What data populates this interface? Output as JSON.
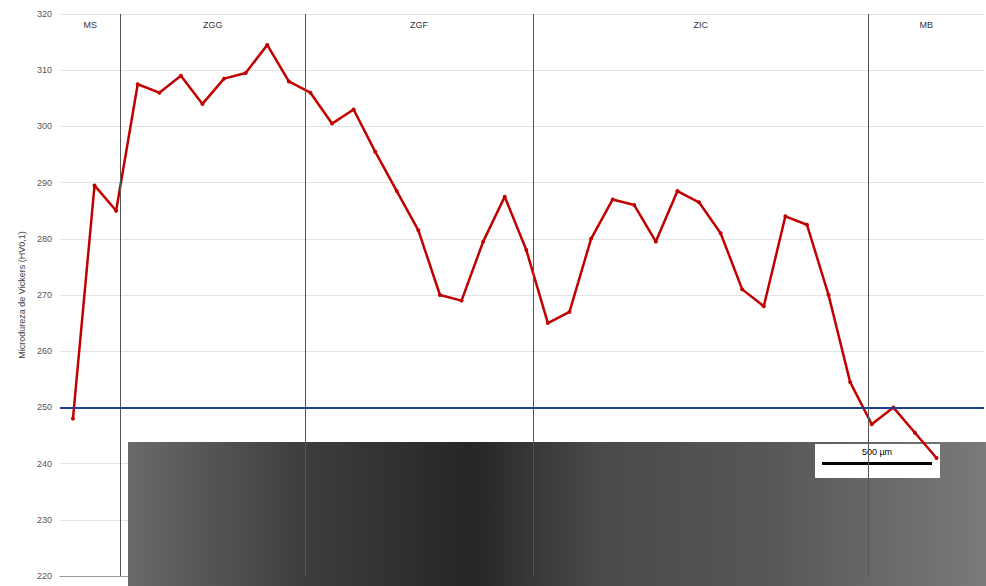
{
  "chart_data": {
    "type": "line",
    "y_label": "Microdureza de Vickers (HV0,1)",
    "x": [
      0,
      1,
      2,
      3,
      4,
      5,
      6,
      7,
      8,
      9,
      10,
      11,
      12,
      13,
      14,
      15,
      16,
      17,
      18,
      19,
      20,
      21,
      22,
      23,
      24,
      25,
      26,
      27,
      28,
      29,
      30,
      31,
      32,
      33,
      34,
      35,
      36,
      37,
      38,
      39,
      40
    ],
    "values": [
      248,
      289.5,
      285,
      307.5,
      306,
      309,
      304,
      308.5,
      309.5,
      314.5,
      308,
      306,
      300.5,
      303,
      295.5,
      288.5,
      281.5,
      270,
      269,
      279.5,
      287.5,
      278,
      265,
      267,
      280,
      287,
      286,
      279.5,
      288.5,
      286.5,
      281,
      271,
      268,
      284,
      282.5,
      270,
      254.5,
      247,
      250,
      245.5,
      241
    ],
    "color": "#c00000",
    "marker": "circle",
    "line_style": "solid",
    "xlim": [
      -0.6,
      42.2
    ],
    "ylim": [
      220,
      320
    ],
    "yticks": [
      220,
      230,
      240,
      250,
      260,
      270,
      280,
      290,
      300,
      310,
      320
    ],
    "tick_labels": "y",
    "grid": true,
    "zones": [
      {
        "label": "MS",
        "start": -0.6,
        "end": 2.2
      },
      {
        "label": "ZGG",
        "start": 2.2,
        "end": 10.75
      },
      {
        "label": "ZGF",
        "start": 10.75,
        "end": 21.3
      },
      {
        "label": "ZIC",
        "start": 21.3,
        "end": 36.85
      },
      {
        "label": "MB",
        "start": 36.85,
        "end": 42.2
      }
    ],
    "reference_line": {
      "value": 250,
      "color": "#1f3f8f"
    },
    "scale_bar": "500 µm"
  }
}
